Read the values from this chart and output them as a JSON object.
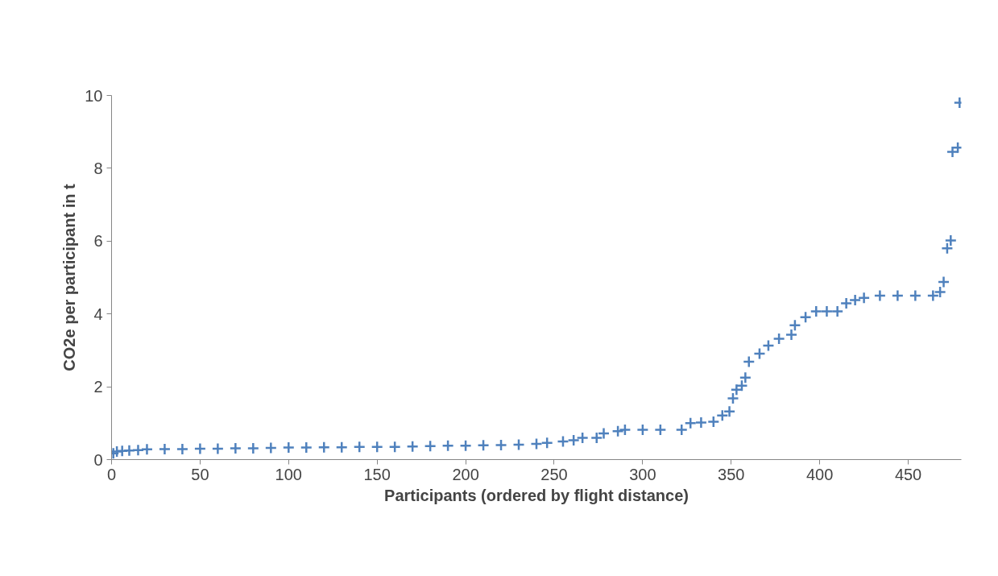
{
  "chart_data": {
    "type": "scatter",
    "xlabel": "Participants (ordered by flight distance)",
    "ylabel": "CO2e per participant in t",
    "x": [
      1,
      3,
      6,
      10,
      15,
      20,
      30,
      40,
      50,
      60,
      70,
      80,
      90,
      100,
      110,
      120,
      130,
      140,
      150,
      160,
      170,
      180,
      190,
      200,
      210,
      220,
      230,
      240,
      246,
      255,
      261,
      266,
      274,
      278,
      286,
      290,
      300,
      310,
      322,
      327,
      333,
      340,
      345,
      349,
      351,
      353,
      356,
      358,
      360,
      366,
      371,
      377,
      384,
      386,
      392,
      398,
      404,
      410,
      415,
      420,
      425,
      434,
      444,
      454,
      464,
      468,
      470,
      472,
      474,
      475,
      478,
      479
    ],
    "series": [
      {
        "color": "#4f81bd",
        "values": [
          0.17,
          0.22,
          0.24,
          0.25,
          0.26,
          0.28,
          0.29,
          0.29,
          0.3,
          0.3,
          0.31,
          0.31,
          0.32,
          0.33,
          0.33,
          0.34,
          0.34,
          0.35,
          0.35,
          0.35,
          0.36,
          0.37,
          0.38,
          0.38,
          0.39,
          0.4,
          0.41,
          0.43,
          0.46,
          0.5,
          0.53,
          0.6,
          0.6,
          0.72,
          0.78,
          0.82,
          0.82,
          0.82,
          0.82,
          1.0,
          1.02,
          1.04,
          1.21,
          1.32,
          1.68,
          1.92,
          2.03,
          2.25,
          2.69,
          2.91,
          3.13,
          3.32,
          3.43,
          3.69,
          3.91,
          4.07,
          4.07,
          4.07,
          4.29,
          4.38,
          4.44,
          4.5,
          4.5,
          4.5,
          4.5,
          4.6,
          4.88,
          5.8,
          6.02,
          8.45,
          8.57,
          9.8
        ]
      }
    ],
    "xlim": [
      0,
      480
    ],
    "ylim": [
      0,
      10
    ],
    "xticks": [
      0,
      50,
      100,
      150,
      200,
      250,
      300,
      350,
      400,
      450
    ],
    "yticks": [
      0,
      2,
      4,
      6,
      8,
      10
    ],
    "marker": "cross",
    "grid": false
  }
}
